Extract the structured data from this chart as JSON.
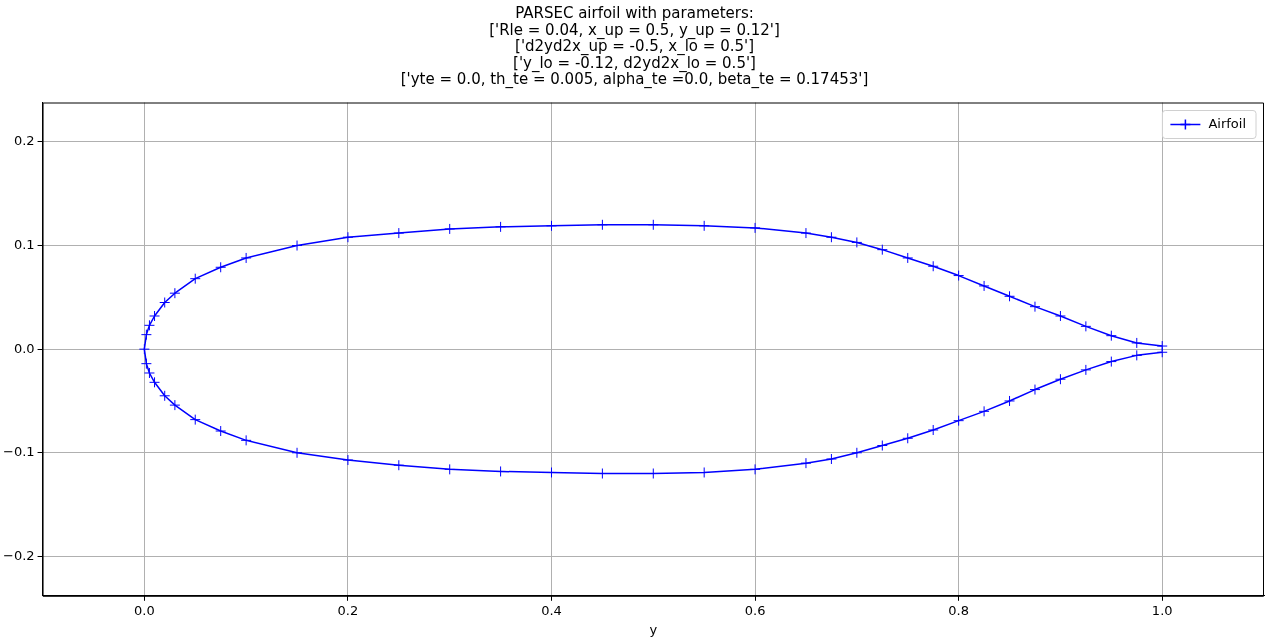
{
  "chart_data": {
    "type": "line",
    "title": "PARSEC airfoil with parameters:\n['Rle = 0.04, x_up = 0.5, y_up = 0.12']\n['d2yd2x_up = -0.5, x_lo = 0.5']\n['y_lo = -0.12, d2yd2x_lo = 0.5']\n['yte = 0.0, th_te = 0.005, alpha_te =0.0, beta_te = 0.17453']",
    "xlabel": "y",
    "series": [
      {
        "name": "Airfoil",
        "color": "#0000ff",
        "x": [
          1.0,
          0.975,
          0.95,
          0.925,
          0.9,
          0.875,
          0.85,
          0.825,
          0.8,
          0.775,
          0.75,
          0.725,
          0.7,
          0.675,
          0.65,
          0.6,
          0.55,
          0.5,
          0.45,
          0.4,
          0.35,
          0.3,
          0.25,
          0.2,
          0.15,
          0.1,
          0.075,
          0.05,
          0.03,
          0.02,
          0.01,
          0.005,
          0.002,
          0.0,
          0.002,
          0.005,
          0.01,
          0.02,
          0.03,
          0.05,
          0.075,
          0.1,
          0.15,
          0.2,
          0.25,
          0.3,
          0.35,
          0.4,
          0.45,
          0.5,
          0.55,
          0.6,
          0.65,
          0.675,
          0.7,
          0.725,
          0.75,
          0.775,
          0.8,
          0.825,
          0.85,
          0.875,
          0.9,
          0.925,
          0.95,
          0.975,
          1.0
        ],
        "values": [
          0.003,
          0.006,
          0.013,
          0.022,
          0.032,
          0.041,
          0.051,
          0.061,
          0.071,
          0.08,
          0.088,
          0.096,
          0.103,
          0.108,
          0.112,
          0.117,
          0.119,
          0.12,
          0.12,
          0.119,
          0.118,
          0.116,
          0.112,
          0.108,
          0.1,
          0.088,
          0.079,
          0.068,
          0.054,
          0.045,
          0.032,
          0.023,
          0.014,
          0.0,
          -0.014,
          -0.023,
          -0.032,
          -0.045,
          -0.054,
          -0.068,
          -0.079,
          -0.088,
          -0.1,
          -0.107,
          -0.112,
          -0.116,
          -0.118,
          -0.119,
          -0.12,
          -0.12,
          -0.119,
          -0.116,
          -0.11,
          -0.106,
          -0.1,
          -0.093,
          -0.086,
          -0.078,
          -0.069,
          -0.06,
          -0.05,
          -0.039,
          -0.029,
          -0.02,
          -0.012,
          -0.006,
          -0.003
        ]
      }
    ],
    "xlim": [
      -0.1,
      1.1
    ],
    "ylim": [
      -0.238,
      0.238
    ],
    "xticks": [
      {
        "value": 0,
        "label": "0.0"
      },
      {
        "value": 0.2,
        "label": "0.2"
      },
      {
        "value": 0.4,
        "label": "0.4"
      },
      {
        "value": 0.6,
        "label": "0.6"
      },
      {
        "value": 0.8,
        "label": "0.8"
      },
      {
        "value": 1,
        "label": "1.0"
      }
    ],
    "yticks": [
      {
        "value": -0.2,
        "label": "−0.2"
      },
      {
        "value": -0.1,
        "label": "−0.1"
      },
      {
        "value": 0,
        "label": "0.0"
      },
      {
        "value": 0.1,
        "label": "0.1"
      },
      {
        "value": 0.2,
        "label": "0.2"
      }
    ],
    "grid": true,
    "legend": "top right",
    "marker": "cross",
    "line_style": "solid"
  }
}
